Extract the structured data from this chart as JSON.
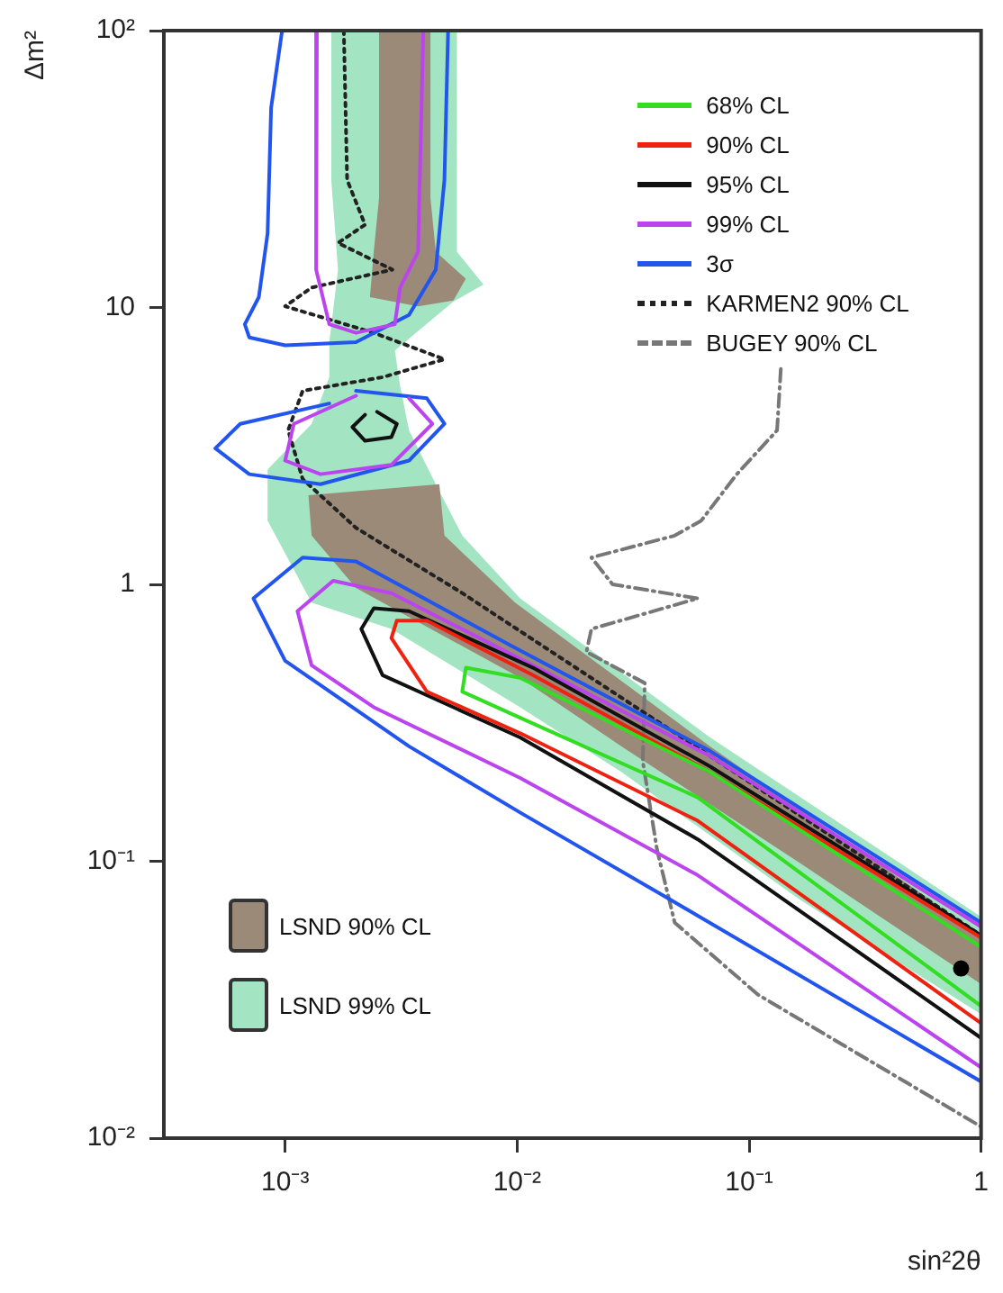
{
  "chart_data": {
    "type": "line",
    "xlabel": "sin²2θ",
    "ylabel": "Δm²",
    "log": "xy",
    "legend": "top right",
    "xlim": [
      0.0003,
      1
    ],
    "ylim": [
      0.01,
      100
    ],
    "xticks": [
      {
        "value": 0.001,
        "label": "10⁻³"
      },
      {
        "value": 0.01,
        "label": "10⁻²"
      },
      {
        "value": 0.1,
        "label": "10⁻¹"
      },
      1
    ],
    "yticks": [
      {
        "value": 0.01,
        "label": "10⁻²"
      },
      {
        "value": 0.1,
        "label": "10⁻¹"
      },
      1,
      10,
      {
        "value": 100,
        "label": "10²"
      }
    ],
    "series": [
      {
        "type": "scatter",
        "marker": "circle",
        "color": "#000000",
        "x": [
          0.82
        ],
        "values": [
          0.041
        ]
      },
      {
        "name": "68% CL",
        "color": "#33dd22",
        "x": [
          1,
          0.0679,
          0.0103,
          0.00601,
          0.0058,
          0.0103,
          0.0601,
          1
        ],
        "values": [
          0.049,
          0.21,
          0.46,
          0.5,
          0.41,
          0.33,
          0.17,
          0.03
        ]
      },
      {
        "name": "90% CL",
        "color": "#ee2211",
        "x": [
          1,
          0.0679,
          0.0117,
          0.00408,
          0.00303,
          0.00287,
          0.00408,
          0.0103,
          0.0601,
          1
        ],
        "values": [
          0.053,
          0.21,
          0.47,
          0.74,
          0.74,
          0.64,
          0.41,
          0.29,
          0.14,
          0.026
        ]
      },
      {
        "name": "95% CL",
        "color": "#111111",
        "x": [
          0.00221,
          0.00195,
          0.00221,
          0.00287,
          0.00303,
          0.00249,
          null,
          1,
          0.0679,
          0.0117,
          0.00342,
          0.00241,
          0.00213,
          0.00263,
          0.0103,
          0.0601,
          1
        ],
        "values": [
          4.1,
          3.7,
          3.3,
          3.4,
          3.8,
          4.2,
          null,
          0.054,
          0.22,
          0.5,
          0.8,
          0.82,
          0.69,
          0.47,
          0.28,
          0.12,
          0.023
        ]
      },
      {
        "name": "99% CL",
        "color": "#bb44ee",
        "x": [
          0.00137,
          0.00135,
          0.00137,
          0.00155,
          0.00202,
          0.00297,
          0.00313,
          0.00374,
          0.00394,
          null,
          0.00202,
          0.00109,
          0.001,
          0.00142,
          0.00287,
          0.00431,
          0.00342,
          null,
          1,
          0.0679,
          0.0098,
          0.00287,
          0.00161,
          0.00113,
          0.0013,
          0.00241,
          0.0103,
          0.0601,
          1
        ],
        "values": [
          100,
          28.9,
          13.7,
          8.7,
          8.1,
          8.7,
          11.8,
          15.9,
          100,
          null,
          4.8,
          3.8,
          2.8,
          2.5,
          2.7,
          3.8,
          4.7,
          null,
          0.058,
          0.24,
          0.55,
          0.93,
          1.03,
          0.8,
          0.51,
          0.36,
          0.2,
          0.089,
          0.018
        ]
      },
      {
        "name": "3σ",
        "color": "#2255ee",
        "x": [
          0.00097,
          0.00087,
          0.00084,
          0.00077,
          0.00067,
          0.0007,
          0.001,
          0.00202,
          0.00342,
          0.00446,
          0.00486,
          0.00504,
          null,
          0.00155,
          0.00064,
          0.0005,
          0.0007,
          0.00142,
          0.00342,
          0.00486,
          0.00408,
          0.00202,
          null,
          1,
          0.0679,
          0.0098,
          0.00202,
          0.00119,
          0.00073,
          0.001,
          0.00342,
          0.0103,
          0.0453,
          1
        ],
        "values": [
          100,
          52.6,
          18.5,
          10.9,
          8.7,
          7.8,
          7.3,
          7.5,
          9.4,
          13.7,
          28.9,
          100,
          null,
          4.5,
          3.8,
          3.1,
          2.5,
          2.3,
          2.8,
          3.8,
          4.7,
          5.0,
          null,
          0.06,
          0.25,
          0.59,
          1.21,
          1.25,
          0.89,
          0.53,
          0.26,
          0.15,
          0.073,
          0.016
        ]
      },
      {
        "name": "KARMEN2 90% CL",
        "color": "#222222",
        "line_style": "dotted",
        "x": [
          0.00179,
          0.00185,
          0.00221,
          0.00169,
          0.0029,
          0.0013,
          0.001,
          0.00241,
          0.00486,
          0.00263,
          0.00119,
          0.00103,
          0.00119,
          0.00202,
          0.0058,
          0.0679,
          1
        ],
        "values": [
          100,
          28.9,
          19.9,
          17.1,
          13.7,
          11.8,
          10.1,
          8.1,
          6.5,
          5.6,
          5.0,
          3.6,
          2.4,
          1.6,
          0.93,
          0.24,
          0.054
        ]
      },
      {
        "name": "BUGEY 90% CL",
        "color": "#777777",
        "line_style": "dashed",
        "x": [
          0.137,
          0.132,
          0.0885,
          0.0622,
          0.0478,
          0.0209,
          0.0258,
          0.0601,
          0.0209,
          0.0199,
          0.0355,
          0.0348,
          0.0401,
          0.0478,
          0.109,
          1
        ],
        "values": [
          6.0,
          3.6,
          2.5,
          1.7,
          1.5,
          1.25,
          1.0,
          0.89,
          0.69,
          0.57,
          0.44,
          0.23,
          0.11,
          0.06,
          0.033,
          0.011
        ]
      },
      {
        "name": "LSND 90% CL",
        "type": "area",
        "color": "#9b8a78",
        "x": [
          0.00254,
          0.00423,
          0.00423,
          0.00446,
          0.00601,
          0.00531,
          0.00374,
          0.00232,
          0.00241,
          0.00254,
          0.00254,
          null,
          0.00126,
          0.00462,
          0.00486,
          0.0098,
          0.0679,
          1,
          1,
          0.164,
          0.0282,
          0.0103,
          0.00202,
          0.0013,
          0.00126
        ],
        "values": [
          100,
          100,
          24.9,
          15.9,
          12.7,
          10.6,
          10.1,
          10.9,
          15.9,
          24.9,
          100,
          null,
          2.1,
          2.3,
          1.5,
          0.86,
          0.26,
          0.054,
          0.036,
          0.099,
          0.26,
          0.46,
          0.97,
          1.5,
          2.1
        ]
      },
      {
        "name": "LSND 99% CL",
        "type": "area",
        "color": "#a3e4c2",
        "x": [
          0.00158,
          0.0055,
          0.0055,
          0.00716,
          0.00531,
          0.00297,
          0.00313,
          0.00342,
          0.00446,
          0.0058,
          0.0103,
          0.0679,
          1,
          1,
          0.164,
          0.0282,
          0.0103,
          0.00287,
          0.0013,
          0.00084,
          0.00084,
          0.0013,
          0.00155,
          0.00155,
          0.00169,
          0.00158,
          0.00158
        ],
        "values": [
          100,
          100,
          15.9,
          12.1,
          10.5,
          7.0,
          5.2,
          3.6,
          2.3,
          1.5,
          0.89,
          0.28,
          0.063,
          0.028,
          0.073,
          0.21,
          0.36,
          0.69,
          0.86,
          1.7,
          2.6,
          3.8,
          5.6,
          7.5,
          13.7,
          28.9,
          100
        ]
      }
    ]
  }
}
